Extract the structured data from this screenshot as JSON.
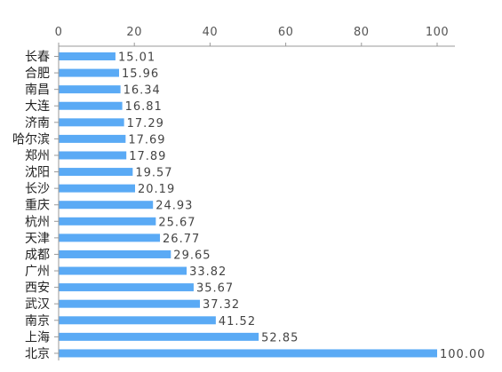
{
  "chart_data": {
    "type": "bar",
    "orientation": "horizontal",
    "title": "",
    "xlabel": "",
    "ylabel": "",
    "xlim": [
      0,
      105
    ],
    "x_ticks": [
      0,
      20,
      40,
      60,
      80,
      100
    ],
    "x_axis_position": "top",
    "grid": false,
    "legend": "none",
    "bar_color": "#5aaaf5",
    "axis_color": "#999999",
    "categories": [
      "长春",
      "合肥",
      "南昌",
      "大连",
      "济南",
      "哈尔滨",
      "郑州",
      "沈阳",
      "长沙",
      "重庆",
      "杭州",
      "天津",
      "成都",
      "广州",
      "西安",
      "武汉",
      "南京",
      "上海",
      "北京"
    ],
    "values": [
      15.01,
      15.96,
      16.34,
      16.81,
      17.29,
      17.69,
      17.89,
      19.57,
      20.19,
      24.93,
      25.67,
      26.77,
      29.65,
      33.82,
      35.67,
      37.32,
      41.52,
      52.85,
      100.0
    ],
    "value_labels": [
      "15.01",
      "15.96",
      "16.34",
      "16.81",
      "17.29",
      "17.69",
      "17.89",
      "19.57",
      "20.19",
      "24.93",
      "25.67",
      "26.77",
      "29.65",
      "33.82",
      "35.67",
      "37.32",
      "41.52",
      "52.85",
      "100.00"
    ]
  }
}
